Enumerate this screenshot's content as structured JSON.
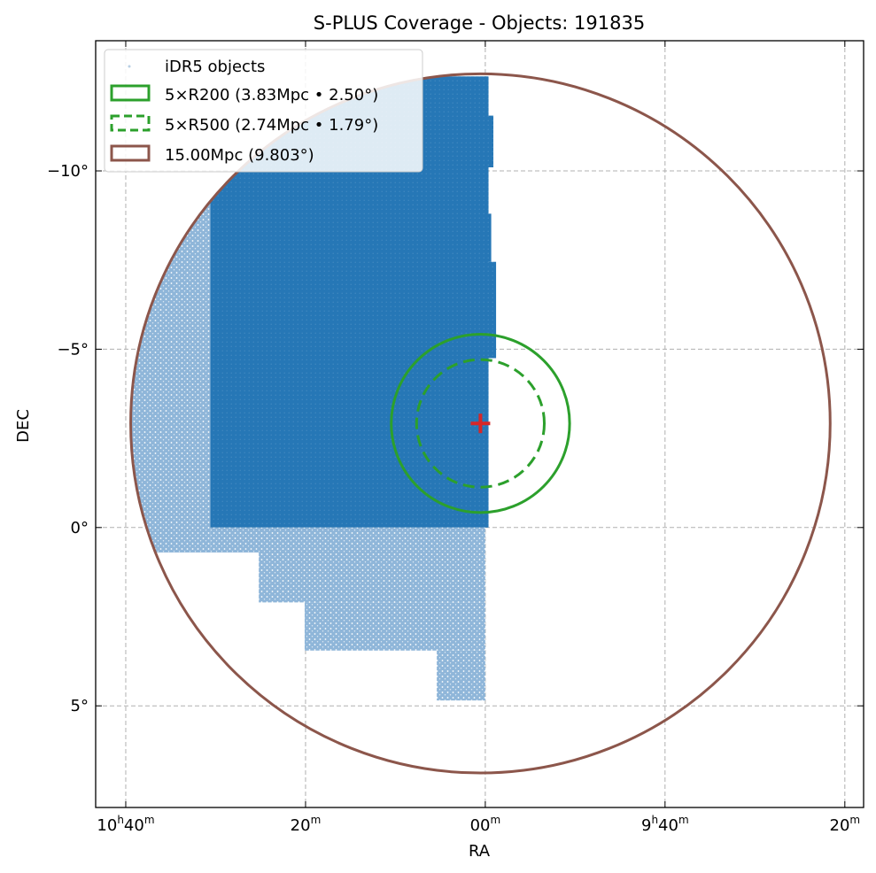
{
  "chart_data": {
    "type": "scatter",
    "title": "S-PLUS Coverage - Objects: 191835",
    "xlabel": "RA",
    "ylabel": "DEC",
    "x_axis_units": "hours (RA)",
    "xlim_hours": [
      10.7225,
      9.2985
    ],
    "ylim_deg": [
      -13.65,
      7.85
    ],
    "x_ticks": [
      {
        "ra_hours": 10.6667,
        "h": "10",
        "m": "40",
        "show_hours": true
      },
      {
        "ra_hours": 10.3333,
        "h": "",
        "m": "20",
        "show_hours": false
      },
      {
        "ra_hours": 10.0,
        "h": "",
        "m": "00",
        "show_hours": false
      },
      {
        "ra_hours": 9.6667,
        "h": "9",
        "m": "40",
        "show_hours": true
      },
      {
        "ra_hours": 9.3333,
        "h": "",
        "m": "20",
        "show_hours": false
      }
    ],
    "y_ticks": [
      {
        "dec": 5,
        "label": "5°"
      },
      {
        "dec": 0,
        "label": "0°"
      },
      {
        "dec": -5,
        "label": "−5°"
      },
      {
        "dec": -10,
        "label": "−10°"
      }
    ],
    "grid": true,
    "legend_position": "top-left",
    "center": {
      "ra_hours": 10.009,
      "dec": -2.92,
      "marker": "+"
    },
    "circles": [
      {
        "name": "5×R200 (3.83Mpc • 2.50°)",
        "radius_deg": 2.5,
        "style": "solid",
        "color": "#2ca02c"
      },
      {
        "name": "5×R500 (2.74Mpc • 1.79°)",
        "radius_deg": 1.79,
        "style": "dashed",
        "color": "#2ca02c"
      },
      {
        "name": "15.00Mpc (9.803°)",
        "radius_deg": 9.803,
        "style": "solid",
        "color": "#8c564b"
      }
    ],
    "series": [
      {
        "name": "iDR5 objects",
        "count": 191835,
        "color": "#1f77b4",
        "footprint": [
          {
            "ra_range": [
              10.51,
              9.994
            ],
            "dec_range": [
              0.0,
              -12.65
            ]
          },
          {
            "ra_range": [
              10.67,
              10.51
            ],
            "dec_range": [
              0.7,
              -12.65
            ]
          },
          {
            "ra_range": [
              10.51,
              10.0
            ],
            "dec_range": [
              0.7,
              0.0
            ]
          },
          {
            "ra_range": [
              10.42,
              10.0
            ],
            "dec_range": [
              2.1,
              0.7
            ]
          },
          {
            "ra_range": [
              10.335,
              10.0
            ],
            "dec_range": [
              3.45,
              2.1
            ]
          },
          {
            "ra_range": [
              10.09,
              10.0
            ],
            "dec_range": [
              4.85,
              3.45
            ]
          },
          {
            "ra_range": [
              9.999,
              9.98
            ],
            "dec_range": [
              -4.75,
              -7.45
            ]
          },
          {
            "ra_range": [
              9.996,
              9.989
            ],
            "dec_range": [
              -7.45,
              -8.8
            ]
          },
          {
            "ra_range": [
              10.018,
              9.985
            ],
            "dec_range": [
              -10.1,
              -11.55
            ]
          }
        ]
      }
    ],
    "colors": {
      "points": "#1f77b4",
      "r200": "#2ca02c",
      "r500": "#2ca02c",
      "ring": "#8c564b",
      "center": "#d62728"
    }
  }
}
